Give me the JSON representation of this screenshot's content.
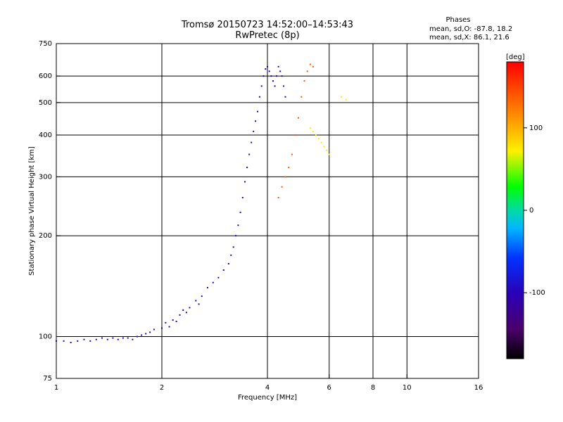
{
  "header": {
    "title_line1": "Tromsø 20150723 14:52:00–14:53:43",
    "title_line2": "RwPretec (8p)"
  },
  "phase_stats": {
    "heading": "Phases",
    "line_o": "mean, sd,O: -87.8, 18.2",
    "line_x": "mean, sd,X:  86.1, 21.6"
  },
  "chart_data": {
    "type": "scatter",
    "xlabel": "Frequency [MHz]",
    "ylabel": "Stationary phase Virtual Height [km]",
    "x_scale": "log",
    "y_scale": "log",
    "xlim": [
      1,
      16
    ],
    "ylim": [
      75,
      750
    ],
    "x_ticks": [
      1,
      2,
      4,
      6,
      8,
      10,
      16
    ],
    "x_tick_labels": [
      "1",
      "2",
      "4",
      "6",
      "8",
      "10",
      "16"
    ],
    "x_gridlines": [
      2,
      4,
      6,
      8,
      10
    ],
    "y_ticks": [
      75,
      100,
      200,
      300,
      400,
      500,
      600,
      750
    ],
    "y_tick_labels": [
      "75",
      "100",
      "200",
      "300",
      "400",
      "500",
      "600",
      "750"
    ],
    "y_gridlines": [
      100,
      200,
      300,
      400,
      500,
      600
    ],
    "grid": true,
    "colorbar": {
      "label": "[deg]",
      "min": -180,
      "max": 180,
      "ticks": [
        100,
        0,
        -100
      ],
      "tick_labels": [
        "100",
        "0",
        "-100"
      ]
    },
    "series": [
      {
        "phase_deg": -105,
        "points": [
          [
            1.0,
            97
          ],
          [
            1.05,
            97
          ],
          [
            1.1,
            96
          ],
          [
            1.15,
            97
          ],
          [
            1.2,
            98
          ],
          [
            1.25,
            97
          ],
          [
            1.3,
            98
          ],
          [
            1.35,
            99
          ],
          [
            1.4,
            98
          ],
          [
            1.45,
            99
          ],
          [
            1.5,
            98
          ],
          [
            1.55,
            99
          ],
          [
            1.6,
            99
          ],
          [
            1.65,
            98
          ],
          [
            1.7,
            100
          ],
          [
            1.75,
            101
          ],
          [
            1.8,
            102
          ],
          [
            1.85,
            103
          ],
          [
            1.9,
            105
          ],
          [
            2.0,
            106
          ],
          [
            2.05,
            110
          ],
          [
            2.1,
            107
          ],
          [
            2.15,
            112
          ],
          [
            2.2,
            111
          ],
          [
            2.25,
            116
          ],
          [
            2.3,
            120
          ],
          [
            2.35,
            118
          ],
          [
            2.4,
            122
          ],
          [
            2.5,
            128
          ],
          [
            2.55,
            125
          ],
          [
            2.6,
            132
          ],
          [
            2.7,
            140
          ],
          [
            2.8,
            145
          ],
          [
            2.9,
            150
          ],
          [
            3.0,
            158
          ],
          [
            3.1,
            165
          ],
          [
            3.15,
            175
          ],
          [
            3.2,
            185
          ],
          [
            3.25,
            200
          ],
          [
            3.3,
            215
          ],
          [
            3.35,
            235
          ],
          [
            3.4,
            260
          ],
          [
            3.45,
            290
          ],
          [
            3.5,
            320
          ],
          [
            3.55,
            350
          ],
          [
            3.6,
            380
          ],
          [
            3.65,
            410
          ],
          [
            3.7,
            440
          ],
          [
            3.75,
            470
          ],
          [
            3.8,
            520
          ],
          [
            3.85,
            560
          ],
          [
            3.9,
            600
          ],
          [
            3.95,
            630
          ],
          [
            4.0,
            640
          ],
          [
            4.05,
            620
          ],
          [
            4.1,
            600
          ],
          [
            4.15,
            580
          ],
          [
            4.2,
            560
          ],
          [
            4.25,
            600
          ],
          [
            4.3,
            640
          ],
          [
            4.35,
            620
          ],
          [
            4.4,
            600
          ],
          [
            4.45,
            560
          ],
          [
            4.5,
            520
          ]
        ]
      },
      {
        "phase_deg": 140,
        "points": [
          [
            4.3,
            260
          ],
          [
            4.4,
            280
          ],
          [
            4.5,
            300
          ],
          [
            4.6,
            320
          ],
          [
            4.7,
            350
          ],
          [
            4.8,
            400
          ],
          [
            4.9,
            450
          ],
          [
            5.0,
            520
          ],
          [
            5.1,
            580
          ],
          [
            5.2,
            620
          ],
          [
            5.3,
            650
          ],
          [
            5.4,
            640
          ]
        ]
      },
      {
        "phase_deg": 70,
        "points": [
          [
            5.3,
            420
          ],
          [
            5.4,
            410
          ],
          [
            5.5,
            400
          ],
          [
            5.6,
            390
          ],
          [
            5.7,
            380
          ],
          [
            5.8,
            370
          ],
          [
            5.9,
            360
          ],
          [
            6.0,
            350
          ],
          [
            6.5,
            520
          ],
          [
            6.7,
            510
          ]
        ]
      }
    ]
  }
}
